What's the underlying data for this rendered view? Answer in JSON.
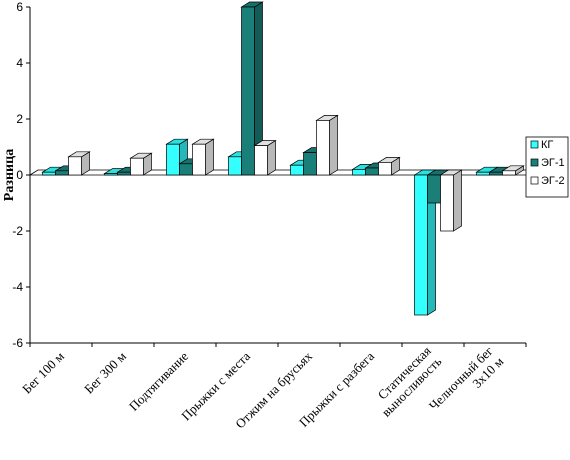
{
  "chart_data": {
    "type": "bar",
    "title": "",
    "xlabel": "",
    "ylabel": "Разница",
    "ylim": [
      -6,
      6
    ],
    "yticks": [
      6,
      4,
      2,
      0,
      -2,
      -4,
      -6
    ],
    "grid": false,
    "legend_position": "right",
    "categories": [
      [
        "Бег 100 м"
      ],
      [
        "Бег 300 м"
      ],
      [
        "Подтягивание"
      ],
      [
        "Прыжки с места"
      ],
      [
        "Отжим на брусьях"
      ],
      [
        "Прыжки с разбега"
      ],
      [
        "Статическая",
        "выносливость"
      ],
      [
        "Челночный бег",
        "3х10 м"
      ]
    ],
    "series": [
      {
        "name": "КГ",
        "color": "#33ffff",
        "values": [
          0.1,
          0.05,
          1.1,
          0.65,
          0.35,
          0.2,
          -5.0,
          0.1
        ]
      },
      {
        "name": "ЭГ-1",
        "color": "#1a7f78",
        "values": [
          0.15,
          0.1,
          0.4,
          6.0,
          0.8,
          0.25,
          -1.0,
          0.1
        ]
      },
      {
        "name": "ЭГ-2",
        "color": "#ffffff",
        "values": [
          0.65,
          0.6,
          1.1,
          1.05,
          1.95,
          0.45,
          -2.0,
          0.15
        ]
      }
    ]
  }
}
